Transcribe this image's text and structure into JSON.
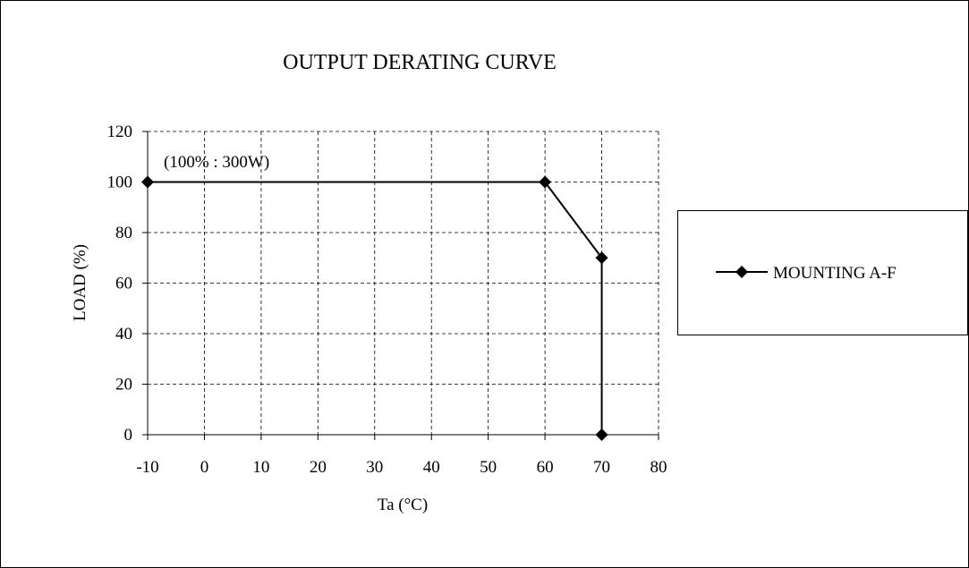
{
  "chart_data": {
    "type": "line",
    "title": "OUTPUT DERATING CURVE",
    "xlabel": "Ta (°C)",
    "ylabel": "LOAD (%)",
    "xlim": [
      -10,
      80
    ],
    "ylim": [
      0,
      120
    ],
    "x_ticks": [
      -10,
      0,
      10,
      20,
      30,
      40,
      50,
      60,
      70,
      80
    ],
    "y_ticks": [
      0,
      20,
      40,
      60,
      80,
      100,
      120
    ],
    "grid": true,
    "grid_style": "dashed",
    "legend_position": "right",
    "annotation": "(100% : 300W)",
    "series": [
      {
        "name": "MOUNTING A-F",
        "marker": "diamond",
        "color": "#000000",
        "points": [
          {
            "x": -10,
            "y": 100
          },
          {
            "x": 60,
            "y": 100
          },
          {
            "x": 70,
            "y": 70
          },
          {
            "x": 70,
            "y": 0
          }
        ]
      }
    ]
  }
}
